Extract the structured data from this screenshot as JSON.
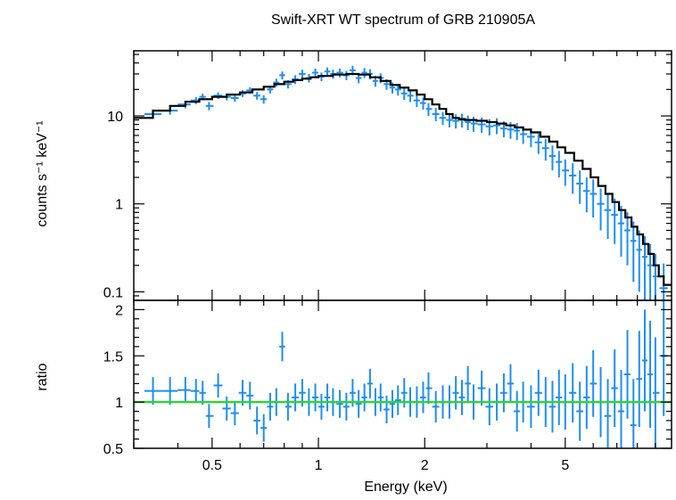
{
  "chart_data": [
    {
      "type": "scatter",
      "panel": "spectrum",
      "title": "Swift-XRT WT spectrum of GRB 210905A",
      "xlabel": "",
      "ylabel": "counts s⁻¹ keV⁻¹",
      "xscale": "log",
      "yscale": "log",
      "xlim": [
        0.3,
        10
      ],
      "ylim": [
        0.08,
        55
      ],
      "yticks": [
        0.1,
        1,
        10
      ],
      "yticklabels": [
        "0.1",
        "1",
        "10"
      ],
      "grid": false,
      "legend": "none",
      "colors": {
        "data": "#1E8EF0",
        "model": "#000000"
      },
      "series": [
        {
          "name": "",
          "kind": "data-with-errors",
          "x": [
            0.34,
            0.38,
            0.42,
            0.45,
            0.47,
            0.49,
            0.52,
            0.55,
            0.58,
            0.61,
            0.64,
            0.67,
            0.7,
            0.73,
            0.76,
            0.79,
            0.82,
            0.86,
            0.9,
            0.94,
            0.98,
            1.02,
            1.06,
            1.1,
            1.15,
            1.2,
            1.25,
            1.3,
            1.35,
            1.4,
            1.45,
            1.5,
            1.56,
            1.62,
            1.68,
            1.75,
            1.82,
            1.9,
            1.98,
            2.05,
            2.15,
            2.25,
            2.35,
            2.45,
            2.55,
            2.65,
            2.75,
            2.9,
            3.05,
            3.2,
            3.35,
            3.5,
            3.65,
            3.8,
            4.0,
            4.2,
            4.4,
            4.6,
            4.8,
            5.0,
            5.25,
            5.5,
            5.75,
            6.0,
            6.3,
            6.6,
            6.9,
            7.2,
            7.5,
            7.8,
            8.1,
            8.4,
            8.7,
            9.0,
            9.5
          ],
          "y": [
            10.5,
            11.5,
            13.5,
            15,
            16.5,
            13,
            17,
            16.5,
            16,
            18,
            19.5,
            17,
            15.5,
            20,
            24,
            29,
            23,
            26,
            30,
            27,
            31,
            28,
            32,
            30,
            31,
            29,
            33,
            27,
            31,
            30,
            25,
            27,
            23,
            21,
            20,
            18,
            17,
            15,
            14,
            12,
            10.5,
            9.5,
            9,
            8.8,
            9,
            8.5,
            8.2,
            8,
            7.6,
            7.8,
            7.2,
            7.0,
            6.8,
            6.2,
            5.8,
            5.0,
            4.3,
            3.5,
            3.0,
            2.4,
            2.1,
            1.7,
            1.4,
            1.3,
            1.0,
            0.85,
            0.75,
            0.6,
            0.5,
            0.38,
            0.3,
            0.25,
            0.2,
            0.15,
            0.11
          ],
          "yerr": [
            1.2,
            1.2,
            1.3,
            1.4,
            1.4,
            1.4,
            1.5,
            1.5,
            1.5,
            1.6,
            1.7,
            1.7,
            1.7,
            2.0,
            2.5,
            3.0,
            2.5,
            3.0,
            3.5,
            3.0,
            3.5,
            3.2,
            3.5,
            3.5,
            3.5,
            3.5,
            4.0,
            3.5,
            4.0,
            4.0,
            3.5,
            3.5,
            3.2,
            3.0,
            3.0,
            2.8,
            2.6,
            2.4,
            2.2,
            2.0,
            1.8,
            1.6,
            1.6,
            1.6,
            1.6,
            1.6,
            1.6,
            1.6,
            1.6,
            1.6,
            1.5,
            1.5,
            1.5,
            1.4,
            1.4,
            1.3,
            1.2,
            1.1,
            1.0,
            0.8,
            0.8,
            0.7,
            0.6,
            0.6,
            0.5,
            0.45,
            0.4,
            0.35,
            0.3,
            0.25,
            0.2,
            0.18,
            0.15,
            0.12,
            0.1
          ]
        },
        {
          "name": "",
          "kind": "model-step",
          "x": [
            0.3,
            0.34,
            0.38,
            0.42,
            0.46,
            0.5,
            0.55,
            0.6,
            0.65,
            0.7,
            0.75,
            0.8,
            0.85,
            0.9,
            0.95,
            1.0,
            1.1,
            1.2,
            1.3,
            1.4,
            1.5,
            1.6,
            1.7,
            1.8,
            1.9,
            2.0,
            2.1,
            2.2,
            2.3,
            2.4,
            2.5,
            2.6,
            2.8,
            3.0,
            3.2,
            3.4,
            3.6,
            3.8,
            4.0,
            4.25,
            4.5,
            4.75,
            5.0,
            5.3,
            5.6,
            5.9,
            6.2,
            6.5,
            6.8,
            7.1,
            7.4,
            7.7,
            8.0,
            8.3,
            8.6,
            8.9,
            9.2,
            9.5,
            10.0
          ],
          "y": [
            9.5,
            11.5,
            13,
            14.5,
            15.5,
            16.5,
            17.5,
            18.5,
            20,
            21.5,
            23,
            24.5,
            25.5,
            26.5,
            27.5,
            28.5,
            29.5,
            30,
            29.5,
            27.5,
            25,
            22.5,
            21,
            19.5,
            17.5,
            15.5,
            13.5,
            12,
            10.5,
            9.5,
            9.2,
            9.0,
            8.8,
            8.5,
            8.2,
            7.8,
            7.4,
            7.0,
            6.5,
            5.8,
            5.1,
            4.4,
            3.8,
            3.1,
            2.5,
            2.0,
            1.6,
            1.3,
            1.05,
            0.85,
            0.7,
            0.55,
            0.45,
            0.35,
            0.27,
            0.2,
            0.15,
            0.12,
            0.11
          ]
        }
      ]
    },
    {
      "type": "scatter",
      "panel": "ratio",
      "title": "",
      "xlabel": "Energy (keV)",
      "ylabel": "ratio",
      "xscale": "log",
      "yscale": "linear",
      "xlim": [
        0.3,
        10
      ],
      "ylim": [
        0.5,
        2.1
      ],
      "xticks": [
        0.5,
        1,
        2,
        5
      ],
      "xticklabels": [
        "0.5",
        "1",
        "2",
        "5"
      ],
      "yticks": [
        0.5,
        1,
        1.5,
        2
      ],
      "yticklabels": [
        "0.5",
        "1",
        "1.5",
        "2"
      ],
      "grid": false,
      "legend": "none",
      "colors": {
        "data": "#1E8EF0",
        "reference": "#22DD22"
      },
      "reference_line": 1,
      "series": [
        {
          "name": "",
          "kind": "data-with-errors",
          "x": [
            0.34,
            0.38,
            0.42,
            0.45,
            0.47,
            0.49,
            0.52,
            0.55,
            0.58,
            0.61,
            0.64,
            0.67,
            0.7,
            0.73,
            0.76,
            0.79,
            0.82,
            0.86,
            0.9,
            0.94,
            0.98,
            1.02,
            1.06,
            1.1,
            1.15,
            1.2,
            1.25,
            1.3,
            1.35,
            1.4,
            1.45,
            1.5,
            1.56,
            1.62,
            1.68,
            1.75,
            1.82,
            1.9,
            1.98,
            2.05,
            2.15,
            2.25,
            2.35,
            2.45,
            2.55,
            2.65,
            2.75,
            2.9,
            3.05,
            3.2,
            3.35,
            3.5,
            3.65,
            3.8,
            4.0,
            4.2,
            4.4,
            4.6,
            4.8,
            5.0,
            5.25,
            5.5,
            5.75,
            6.0,
            6.3,
            6.6,
            6.9,
            7.2,
            7.5,
            7.8,
            8.1,
            8.4,
            8.7,
            9.0,
            9.5
          ],
          "y": [
            1.12,
            1.12,
            1.13,
            1.12,
            1.1,
            0.85,
            1.18,
            0.93,
            0.88,
            1.1,
            1.07,
            0.8,
            0.72,
            0.95,
            1.0,
            1.6,
            0.95,
            1.05,
            1.1,
            1.0,
            1.05,
            0.95,
            1.05,
            1.0,
            0.98,
            0.95,
            1.1,
            0.98,
            1.05,
            1.2,
            1.0,
            1.05,
            0.92,
            0.98,
            1.02,
            1.1,
            1.0,
            1.0,
            1.05,
            1.15,
            0.95,
            1.0,
            1.0,
            1.1,
            1.05,
            1.2,
            1.0,
            1.15,
            0.95,
            1.0,
            1.1,
            1.2,
            0.9,
            1.0,
            0.95,
            1.1,
            1.0,
            0.95,
            1.05,
            1.0,
            1.1,
            0.9,
            1.05,
            1.2,
            1.0,
            0.85,
            1.15,
            0.9,
            1.3,
            0.75,
            1.25,
            1.45,
            1.3,
            1.1,
            1.5
          ],
          "yerr": [
            0.15,
            0.15,
            0.14,
            0.13,
            0.13,
            0.13,
            0.13,
            0.13,
            0.13,
            0.14,
            0.15,
            0.15,
            0.15,
            0.15,
            0.15,
            0.16,
            0.15,
            0.15,
            0.15,
            0.15,
            0.15,
            0.14,
            0.15,
            0.15,
            0.15,
            0.15,
            0.15,
            0.15,
            0.15,
            0.16,
            0.15,
            0.15,
            0.15,
            0.15,
            0.16,
            0.16,
            0.16,
            0.17,
            0.17,
            0.17,
            0.17,
            0.18,
            0.18,
            0.18,
            0.19,
            0.19,
            0.19,
            0.19,
            0.2,
            0.2,
            0.21,
            0.21,
            0.22,
            0.22,
            0.23,
            0.25,
            0.27,
            0.28,
            0.3,
            0.3,
            0.32,
            0.32,
            0.34,
            0.36,
            0.38,
            0.4,
            0.42,
            0.45,
            0.48,
            0.5,
            0.52,
            0.55,
            0.58,
            0.6,
            0.65
          ]
        }
      ]
    }
  ]
}
